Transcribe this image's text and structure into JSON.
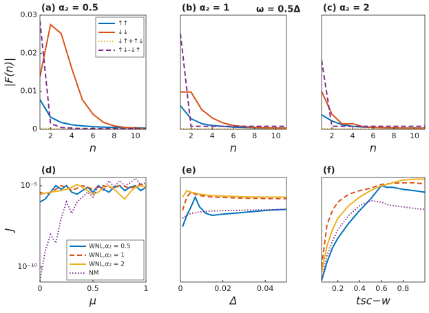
{
  "chart_data": [
    {
      "type": "line",
      "title": "(a) α₂ = 0.5",
      "xlabel": "n",
      "ylabel": "|F(n)|",
      "x": [
        1,
        2,
        3,
        4,
        5,
        6,
        7,
        8,
        9,
        10,
        11
      ],
      "xlim": [
        1,
        11
      ],
      "xticks": [
        2,
        4,
        6,
        8,
        10
      ],
      "ylim": [
        0,
        0.03
      ],
      "yticks": [
        0,
        0.01,
        0.02,
        0.03
      ],
      "legend": "upper right",
      "series": [
        {
          "name": "↑↑",
          "color": "#0072bd",
          "linestyle": "solid",
          "values": [
            0.0078,
            0.0032,
            0.0018,
            0.0012,
            0.0009,
            0.0007,
            0.0006,
            0.0005,
            0.0004,
            0.0004,
            0.0003
          ]
        },
        {
          "name": "↓↓",
          "color": "#d95319",
          "linestyle": "solid",
          "values": [
            0.0138,
            0.0275,
            0.0252,
            0.016,
            0.0078,
            0.004,
            0.0018,
            0.0009,
            0.0005,
            0.0003,
            0.0002
          ]
        },
        {
          "name": "↓↑+↑↓",
          "color": "#edb120",
          "linestyle": "dotted",
          "values": [
            0.0003,
            0.0002,
            0.0001,
            0.0001,
            0.0001,
            0.0001,
            0.0001,
            0.0001,
            0.0001,
            0.0001,
            0.0001
          ]
        },
        {
          "name": "↑↓-↓↑",
          "color": "#7e2f8e",
          "linestyle": "dashed",
          "values": [
            0.0285,
            0.0015,
            0.0005,
            0.0003,
            0.0002,
            0.0002,
            0.0002,
            0.0002,
            0.0002,
            0.0002,
            0.0002
          ]
        }
      ]
    },
    {
      "type": "line",
      "title": "(b) α₂ = 1",
      "annotation": "ω = 0.5Δ",
      "xlabel": "n",
      "x": [
        1,
        2,
        3,
        4,
        5,
        6,
        7,
        8,
        9,
        10,
        11
      ],
      "xlim": [
        1,
        11
      ],
      "xticks": [
        2,
        4,
        6,
        8,
        10
      ],
      "ylim": [
        0,
        0.03
      ],
      "series": [
        {
          "color": "#0072bd",
          "linestyle": "solid",
          "values": [
            0.0062,
            0.0028,
            0.0015,
            0.001,
            0.0008,
            0.0006,
            0.0005,
            0.0004,
            0.0003,
            0.0003,
            0.0003
          ]
        },
        {
          "color": "#d95319",
          "linestyle": "solid",
          "values": [
            0.0098,
            0.0098,
            0.0052,
            0.003,
            0.0017,
            0.001,
            0.0007,
            0.0005,
            0.0004,
            0.0003,
            0.0003
          ]
        },
        {
          "color": "#edb120",
          "linestyle": "dotted",
          "values": [
            0.0002,
            0.0002,
            0.0001,
            0.0001,
            0.0001,
            0.0001,
            0.0001,
            0.0001,
            0.0001,
            0.0001,
            0.0001
          ]
        },
        {
          "color": "#7e2f8e",
          "linestyle": "dashed",
          "values": [
            0.0252,
            0.0008,
            0.0008,
            0.0008,
            0.0008,
            0.0008,
            0.0008,
            0.0008,
            0.0008,
            0.0008,
            0.0008
          ]
        }
      ]
    },
    {
      "type": "line",
      "title": "(c) α₂ = 2",
      "xlabel": "n",
      "x": [
        1,
        2,
        3,
        4,
        5,
        6,
        7,
        8,
        9,
        10,
        11
      ],
      "xlim": [
        1,
        11
      ],
      "xticks": [
        2,
        4,
        6,
        8,
        10
      ],
      "ylim": [
        0,
        0.03
      ],
      "series": [
        {
          "color": "#0072bd",
          "linestyle": "solid",
          "values": [
            0.0038,
            0.0022,
            0.0012,
            0.0008,
            0.0006,
            0.0005,
            0.0004,
            0.0003,
            0.0003,
            0.0003,
            0.0003
          ]
        },
        {
          "color": "#d95319",
          "linestyle": "solid",
          "values": [
            0.01,
            0.004,
            0.0014,
            0.0015,
            0.0007,
            0.0005,
            0.0004,
            0.0004,
            0.0003,
            0.0003,
            0.0003
          ]
        },
        {
          "color": "#edb120",
          "linestyle": "dotted",
          "values": [
            0.0002,
            0.0002,
            0.0001,
            0.0001,
            0.0001,
            0.0001,
            0.0001,
            0.0001,
            0.0001,
            0.0001,
            0.0001
          ]
        },
        {
          "color": "#7e2f8e",
          "linestyle": "dashed",
          "values": [
            0.0182,
            0.0008,
            0.0008,
            0.0008,
            0.0008,
            0.0008,
            0.0008,
            0.0008,
            0.0008,
            0.0008,
            0.0008
          ]
        }
      ]
    },
    {
      "type": "line",
      "title": "(d)",
      "xlabel": "μ",
      "ylabel": "J",
      "log_y": true,
      "x": [
        0,
        0.05,
        0.1,
        0.15,
        0.2,
        0.25,
        0.3,
        0.35,
        0.4,
        0.45,
        0.5,
        0.55,
        0.6,
        0.65,
        0.7,
        0.75,
        0.8,
        0.85,
        0.9,
        0.95,
        1
      ],
      "xlim": [
        0,
        1
      ],
      "xticks": [
        0,
        0.5,
        1
      ],
      "ylim": [
        1.2e-11,
        3.2e-05
      ],
      "yticks": [
        {
          "value": 1e-10,
          "label": "10⁻¹⁰"
        },
        {
          "value": 1e-05,
          "label": "10⁻⁵"
        }
      ],
      "legend": "lower right",
      "series": [
        {
          "name": "WNL,α₂ = 0.5",
          "color": "#0072bd",
          "linestyle": "solid",
          "values": [
            1e-06,
            1.5e-06,
            4e-06,
            1e-05,
            6e-06,
            1e-05,
            4e-06,
            3e-06,
            5e-06,
            8e-06,
            4e-06,
            1e-05,
            6e-06,
            4e-06,
            8e-06,
            1e-05,
            5e-06,
            8e-06,
            1e-05,
            5e-06,
            8e-06
          ]
        },
        {
          "name": "WNL,α₂ = 1",
          "color": "#d95319",
          "linestyle": "dashed",
          "values": [
            4e-06,
            3e-06,
            4e-06,
            6e-06,
            1e-05,
            8e-06,
            5e-06,
            7e-06,
            1e-05,
            8e-06,
            6e-06,
            8e-06,
            1e-05,
            8e-06,
            7e-06,
            1e-05,
            9e-06,
            7e-06,
            9e-06,
            1.2e-05,
            1e-05
          ]
        },
        {
          "name": "WNL,α₂ = 2",
          "color": "#edb120",
          "linestyle": "solid",
          "values": [
            3e-06,
            3.5e-06,
            4e-06,
            4.5e-06,
            5e-06,
            6e-06,
            8e-06,
            1.2e-05,
            8e-06,
            5e-06,
            3e-06,
            4e-06,
            8e-06,
            1e-05,
            6e-06,
            3e-06,
            1.5e-06,
            4e-06,
            8e-06,
            1e-05,
            8e-06
          ]
        },
        {
          "name": "NM",
          "color": "#7e2f8e",
          "linestyle": "dotted",
          "values": [
            1.5e-11,
            1e-09,
            1e-08,
            3e-09,
            1e-07,
            1e-06,
            2e-07,
            1e-06,
            2e-06,
            4e-06,
            2e-06,
            1e-05,
            5e-06,
            2e-05,
            8e-06,
            2e-05,
            1e-05,
            1.5e-05,
            2.8e-05,
            1.2e-05,
            1.5e-05
          ]
        }
      ]
    },
    {
      "type": "line",
      "title": "(e)",
      "xlabel": "Δ",
      "log_y": true,
      "x": [
        0.001,
        0.003,
        0.005,
        0.007,
        0.009,
        0.012,
        0.015,
        0.02,
        0.025,
        0.03,
        0.035,
        0.04,
        0.045,
        0.05
      ],
      "xlim": [
        0,
        0.05
      ],
      "xticks": [
        0,
        0.02,
        0.04
      ],
      "ylim": [
        1.2e-11,
        3.2e-05
      ],
      "series": [
        {
          "color": "#0072bd",
          "linestyle": "solid",
          "values": [
            3e-08,
            1.5e-07,
            5e-07,
            2e-06,
            5e-07,
            2e-07,
            1.5e-07,
            1.8e-07,
            2e-07,
            2.3e-07,
            2.6e-07,
            3e-07,
            3.3e-07,
            3.5e-07
          ]
        },
        {
          "color": "#d95319",
          "linestyle": "dashed",
          "values": [
            3e-07,
            2e-06,
            4e-06,
            3e-06,
            2.5e-06,
            2.2e-06,
            2e-06,
            1.9e-06,
            1.8e-06,
            1.7e-06,
            1.7e-06,
            1.6e-06,
            1.6e-06,
            1.6e-06
          ]
        },
        {
          "color": "#edb120",
          "linestyle": "solid",
          "values": [
            2e-06,
            5e-06,
            4e-06,
            3.5e-06,
            3e-06,
            2.7e-06,
            2.5e-06,
            2.3e-06,
            2.2e-06,
            2.1e-06,
            2e-06,
            2e-06,
            2e-06,
            2e-06
          ]
        },
        {
          "color": "#7e2f8e",
          "linestyle": "dotted",
          "values": [
            1e-07,
            1.5e-07,
            2e-07,
            2.2e-07,
            2.4e-07,
            2.6e-07,
            2.8e-07,
            3e-07,
            3e-07,
            3.1e-07,
            3.2e-07,
            3.3e-07,
            3.4e-07,
            3.5e-07
          ]
        }
      ]
    },
    {
      "type": "line",
      "title": "(f)",
      "xlabel": "tsc−w",
      "log_y": true,
      "x": [
        0.05,
        0.1,
        0.15,
        0.2,
        0.3,
        0.4,
        0.5,
        0.6,
        0.65,
        0.7,
        0.8,
        0.9,
        1
      ],
      "xlim": [
        0.05,
        1
      ],
      "xticks": [
        0.2,
        0.4,
        0.6,
        0.8
      ],
      "ylim": [
        1.2e-11,
        3.2e-05
      ],
      "series": [
        {
          "color": "#0072bd",
          "linestyle": "solid",
          "values": [
            1.5e-11,
            2e-10,
            1.5e-09,
            6e-09,
            5e-08,
            3e-07,
            1.5e-06,
            1e-05,
            8e-06,
            8e-06,
            6e-06,
            5e-06,
            4e-06
          ]
        },
        {
          "color": "#d95319",
          "linestyle": "dashed",
          "values": [
            1e-10,
            4e-08,
            3e-07,
            1e-06,
            3e-06,
            5e-06,
            7e-06,
            1.2e-05,
            1.3e-05,
            1.4e-05,
            1.5e-05,
            1.5e-05,
            1.3e-05
          ]
        },
        {
          "color": "#edb120",
          "linestyle": "solid",
          "values": [
            5e-11,
            2e-09,
            2e-08,
            1e-07,
            6e-07,
            2e-06,
            5e-06,
            1e-05,
            1.2e-05,
            1.5e-05,
            2.2e-05,
            2.5e-05,
            2.5e-05
          ]
        },
        {
          "color": "#7e2f8e",
          "linestyle": "dotted",
          "values": [
            1.5e-11,
            5e-10,
            4e-09,
            2e-08,
            1.5e-07,
            6e-07,
            1.2e-06,
            1e-06,
            7e-07,
            6e-07,
            5e-07,
            4e-07,
            3.5e-07
          ]
        }
      ]
    }
  ]
}
